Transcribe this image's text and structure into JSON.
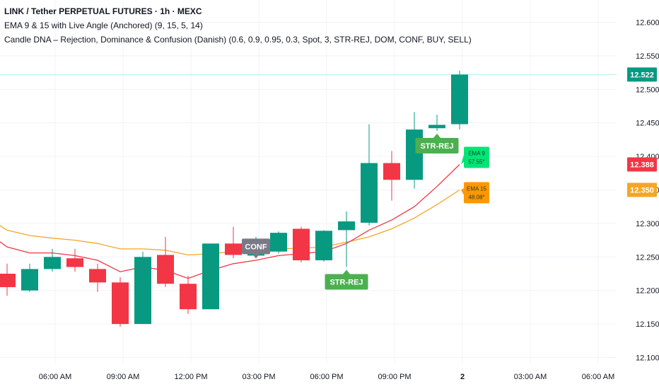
{
  "legend": {
    "title": "LINK / Tether PERPETUAL FUTURES · 1h · MEXC",
    "indicator1": "EMA 9 & 15 with Live Angle (Anchored) (9, 15, 5, 14)",
    "indicator2": "Candle DNA – Rejection, Dominance & Confusion (Danish) (0.6, 0.9, 0.95, 0.3, Spot, 3, STR-REJ, DOM, CONF, BUY, SELL)"
  },
  "colors": {
    "up": "#089981",
    "down": "#f23645",
    "ema9": "#f23645",
    "ema15": "#f5a623",
    "last_line": "#b2ebf2",
    "sig_green": "#4caf50",
    "sig_gray": "#787b86",
    "ema9_box": "#00e676",
    "ema15_box": "#ff9800"
  },
  "chart_data": {
    "type": "candlestick",
    "ylim": [
      12.09,
      12.63
    ],
    "y_ticks": [
      "12.600",
      "12.550",
      "12.500",
      "12.450",
      "12.400",
      "12.350",
      "12.300",
      "12.250",
      "12.200",
      "12.150",
      "12.100"
    ],
    "y_tick_values": [
      12.6,
      12.55,
      12.5,
      12.45,
      12.4,
      12.35,
      12.3,
      12.25,
      12.2,
      12.15,
      12.1
    ],
    "x_ticks": [
      {
        "label": "06:00 AM",
        "index": 2
      },
      {
        "label": "09:00 AM",
        "index": 5
      },
      {
        "label": "12:00 PM",
        "index": 8
      },
      {
        "label": "03:00 PM",
        "index": 11
      },
      {
        "label": "06:00 PM",
        "index": 14
      },
      {
        "label": "09:00 PM",
        "index": 17
      },
      {
        "label": "2",
        "index": 20
      },
      {
        "label": "03:00 AM",
        "index": 23
      },
      {
        "label": "06:00 AM",
        "index": 26
      }
    ],
    "candles": [
      {
        "o": 12.225,
        "h": 12.24,
        "l": 12.192,
        "c": 12.205
      },
      {
        "o": 12.2,
        "h": 12.24,
        "l": 12.198,
        "c": 12.232
      },
      {
        "o": 12.232,
        "h": 12.262,
        "l": 12.228,
        "c": 12.25
      },
      {
        "o": 12.248,
        "h": 12.262,
        "l": 12.228,
        "c": 12.235
      },
      {
        "o": 12.232,
        "h": 12.24,
        "l": 12.198,
        "c": 12.212
      },
      {
        "o": 12.212,
        "h": 12.22,
        "l": 12.146,
        "c": 12.15
      },
      {
        "o": 12.15,
        "h": 12.258,
        "l": 12.15,
        "c": 12.25
      },
      {
        "o": 12.253,
        "h": 12.28,
        "l": 12.205,
        "c": 12.21
      },
      {
        "o": 12.21,
        "h": 12.222,
        "l": 12.165,
        "c": 12.172
      },
      {
        "o": 12.172,
        "h": 12.27,
        "l": 12.172,
        "c": 12.27
      },
      {
        "o": 12.27,
        "h": 12.295,
        "l": 12.248,
        "c": 12.253
      },
      {
        "o": 12.252,
        "h": 12.28,
        "l": 12.25,
        "c": 12.265
      },
      {
        "o": 12.258,
        "h": 12.288,
        "l": 12.255,
        "c": 12.286
      },
      {
        "o": 12.292,
        "h": 12.295,
        "l": 12.242,
        "c": 12.245
      },
      {
        "o": 12.245,
        "h": 12.29,
        "l": 12.243,
        "c": 12.289
      },
      {
        "o": 12.29,
        "h": 12.318,
        "l": 12.235,
        "c": 12.303
      },
      {
        "o": 12.301,
        "h": 12.448,
        "l": 12.297,
        "c": 12.39
      },
      {
        "o": 12.39,
        "h": 12.408,
        "l": 12.334,
        "c": 12.365
      },
      {
        "o": 12.365,
        "h": 12.466,
        "l": 12.352,
        "c": 12.44
      },
      {
        "o": 12.442,
        "h": 12.462,
        "l": 12.438,
        "c": 12.447
      },
      {
        "o": 12.448,
        "h": 12.528,
        "l": 12.44,
        "c": 12.522
      }
    ],
    "ema9": [
      12.265,
      12.256,
      12.256,
      12.252,
      12.245,
      12.228,
      12.235,
      12.23,
      12.218,
      12.23,
      12.24,
      12.245,
      12.252,
      12.255,
      12.258,
      12.27,
      12.29,
      12.305,
      12.325,
      12.355,
      12.388
    ],
    "ema15": [
      12.29,
      12.282,
      12.278,
      12.275,
      12.27,
      12.262,
      12.262,
      12.26,
      12.253,
      12.255,
      12.258,
      12.26,
      12.262,
      12.263,
      12.265,
      12.272,
      12.28,
      12.292,
      12.308,
      12.328,
      12.35
    ],
    "last_price": "12.522",
    "ema9_value": "12.388",
    "ema15_value": "12.350",
    "labels": [
      {
        "text": "CONF",
        "index": 11,
        "price": 12.252,
        "kind": "gray",
        "pos": "above"
      },
      {
        "text": "STR-REJ",
        "index": 15,
        "price": 12.235,
        "kind": "green",
        "pos": "below"
      },
      {
        "text": "STR-REJ",
        "index": 19,
        "price": 12.438,
        "kind": "green",
        "pos": "below"
      }
    ],
    "ema_boxes": [
      {
        "name": "EMA 9",
        "angle": "57.55°",
        "price": 12.388,
        "series": "ema9"
      },
      {
        "name": "EMA 15",
        "angle": "48.08°",
        "price": 12.35,
        "series": "ema15"
      }
    ]
  }
}
